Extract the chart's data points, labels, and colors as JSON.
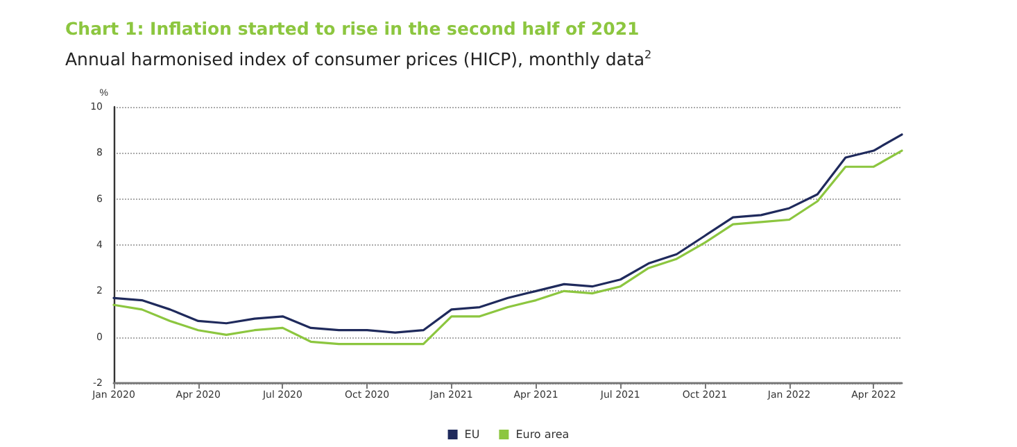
{
  "chart_data": {
    "type": "line",
    "title": "Chart 1: Inflation started to rise in the second half of 2021",
    "subtitle": "Annual harmonised index of consumer prices (HICP), monthly data$^{2}$",
    "ylabel": "%",
    "categories": [
      "Jan 2020",
      null,
      null,
      "Apr 2020",
      null,
      null,
      "Jul 2020",
      null,
      null,
      "Oct 2020",
      null,
      null,
      "Jan 2021",
      null,
      null,
      "Apr 2021",
      null,
      null,
      "Jul 2021",
      null,
      null,
      "Oct 2021",
      null,
      null,
      "Jan 2022",
      null,
      null,
      "Apr 2022",
      null
    ],
    "series": [
      {
        "name": "EU",
        "color": "#1f2a5c",
        "values": [
          1.7,
          1.6,
          1.2,
          0.7,
          0.6,
          0.8,
          0.9,
          0.4,
          0.3,
          0.3,
          0.2,
          0.3,
          1.2,
          1.3,
          1.7,
          2.0,
          2.3,
          2.2,
          2.5,
          3.2,
          3.6,
          4.4,
          5.2,
          5.3,
          5.6,
          6.2,
          7.8,
          8.1,
          8.8
        ]
      },
      {
        "name": "Euro area",
        "color": "#8cc63f",
        "values": [
          1.4,
          1.2,
          0.7,
          0.3,
          0.1,
          0.3,
          0.4,
          -0.2,
          -0.3,
          -0.3,
          -0.3,
          -0.3,
          0.9,
          0.9,
          1.3,
          1.6,
          2.0,
          1.9,
          2.2,
          3.0,
          3.4,
          4.1,
          4.9,
          5.0,
          5.1,
          5.9,
          7.4,
          7.4,
          8.1
        ]
      }
    ],
    "ylim": [
      -2,
      10
    ],
    "yticks": [
      -2,
      0,
      2,
      4,
      6,
      8,
      10
    ],
    "grid": "y",
    "legend": "bottom",
    "marker": "none",
    "line_style": "solid"
  }
}
